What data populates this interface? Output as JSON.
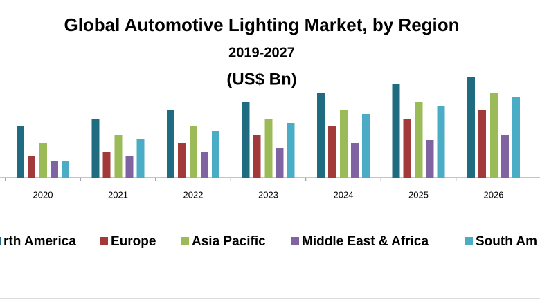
{
  "chart_data": {
    "type": "bar",
    "title": "Global Automotive Lighting Market, by Region",
    "subtitle": "2019-2027",
    "unit": "(US$ Bn)",
    "categories": [
      "2020",
      "2021",
      "2022",
      "2023",
      "2024",
      "2025",
      "2026"
    ],
    "series": [
      {
        "name": "rth America",
        "color": "#1f6b80",
        "values": [
          74,
          85,
          98,
          109,
          122,
          135,
          146
        ]
      },
      {
        "name": "Europe",
        "color": "#a33a3a",
        "values": [
          31,
          37,
          50,
          61,
          74,
          85,
          98
        ]
      },
      {
        "name": "Asia Pacific",
        "color": "#9bbb59",
        "values": [
          50,
          61,
          74,
          85,
          98,
          109,
          122
        ]
      },
      {
        "name": "Middle East & Africa",
        "color": "#8064a2",
        "values": [
          24,
          31,
          37,
          43,
          50,
          55,
          61
        ]
      },
      {
        "name": "South Am",
        "color": "#4bacc6",
        "values": [
          24,
          56,
          67,
          79,
          92,
          104,
          116
        ]
      }
    ],
    "ylim": [
      0,
      160
    ]
  }
}
